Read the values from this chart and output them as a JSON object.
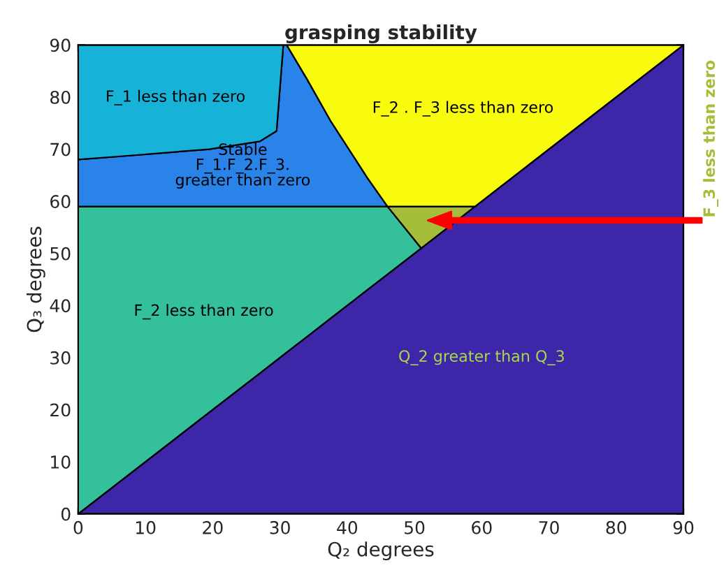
{
  "chart_data": {
    "type": "area",
    "stacked": true,
    "title": "grasping stability",
    "xlabel": "Q₂ degrees",
    "ylabel": "Q₃ degrees",
    "xlim": [
      0,
      90
    ],
    "ylim": [
      0,
      90
    ],
    "xticks": [
      0,
      10,
      20,
      30,
      40,
      50,
      60,
      70,
      80,
      90
    ],
    "yticks": [
      0,
      10,
      20,
      30,
      40,
      50,
      60,
      70,
      80,
      90
    ],
    "legend": false,
    "x": [
      0,
      7,
      19.5,
      27,
      29.5,
      30.5,
      31,
      34,
      37.5,
      43,
      46,
      51,
      59,
      90
    ],
    "series": [
      {
        "name": "Q_2 greater than Q_3",
        "color": "#3e26a8",
        "values": [
          0,
          7,
          19.5,
          27,
          29.5,
          30.5,
          31,
          34,
          37.5,
          43,
          46,
          51,
          59,
          90
        ]
      },
      {
        "name": "F_2 less than zero",
        "color": "#33c09a",
        "values": [
          59,
          52,
          39.5,
          32,
          29.5,
          28.5,
          28,
          25,
          21.5,
          16,
          13,
          0,
          null,
          null
        ]
      },
      {
        "name": "F_3 less than zero",
        "color": "#a5be3a",
        "values": [
          null,
          null,
          null,
          null,
          null,
          null,
          null,
          null,
          null,
          null,
          0,
          8,
          0,
          null
        ]
      },
      {
        "name": "Stable\nF_1.F_2.F_3.\ngreater than zero",
        "color": "#2a83e8",
        "values": [
          9,
          9.7,
          11,
          12.5,
          14.5,
          31,
          31,
          24.5,
          16.5,
          5.5,
          0,
          null,
          null,
          null
        ]
      },
      {
        "name": "F_1 less than zero",
        "color": "#16b2d8",
        "values": [
          22,
          21.3,
          20,
          18.5,
          16.5,
          0,
          null,
          null,
          null,
          null,
          null,
          null,
          null,
          null
        ]
      },
      {
        "name": "F_2 . F_3 less than zero",
        "color": "#f9fb0e",
        "values": [
          null,
          null,
          null,
          null,
          null,
          null,
          0,
          6.5,
          14.5,
          25.5,
          31,
          31,
          31,
          0
        ]
      }
    ]
  }
}
